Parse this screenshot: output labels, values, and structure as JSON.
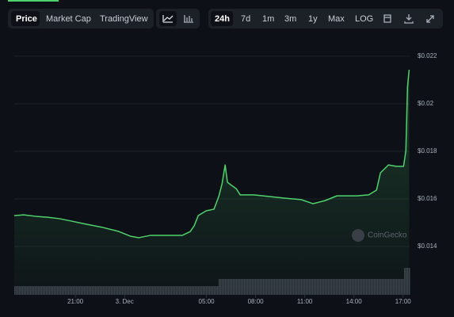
{
  "toolbar": {
    "tabs": [
      "Price",
      "Market Cap",
      "TradingView"
    ],
    "ranges": [
      "24h",
      "7d",
      "1m",
      "3m",
      "1y",
      "Max",
      "LOG"
    ]
  },
  "chart_data": {
    "type": "line",
    "watermark": "CoinGecko",
    "color": "#4fd26b",
    "grid": true,
    "x": [
      17.27,
      17.85,
      18.58,
      19.3,
      20.03,
      20.75,
      21.72,
      22.69,
      23.66,
      24.38,
      24.87,
      25.59,
      26.56,
      27.53,
      28.01,
      28.25,
      28.5,
      28.98,
      29.46,
      29.75,
      29.95,
      30.14,
      30.28,
      30.53,
      30.82,
      31.06,
      31.88,
      32.85,
      33.82,
      34.78,
      35.51,
      36.24,
      36.96,
      38.17,
      38.9,
      39.38,
      39.62,
      40.11,
      40.59,
      41.03,
      41.17,
      41.27,
      41.37
    ],
    "values": [
      0.0153,
      0.01533,
      0.01527,
      0.01523,
      0.01517,
      0.01507,
      0.01493,
      0.0148,
      0.01463,
      0.01443,
      0.01437,
      0.01447,
      0.01447,
      0.01447,
      0.01463,
      0.01487,
      0.0153,
      0.0155,
      0.01557,
      0.0161,
      0.01663,
      0.01743,
      0.0167,
      0.01657,
      0.01643,
      0.01617,
      0.01617,
      0.0161,
      0.01603,
      0.01597,
      0.0158,
      0.01593,
      0.01613,
      0.01613,
      0.01617,
      0.01637,
      0.0171,
      0.01743,
      0.01737,
      0.01737,
      0.01803,
      0.0207,
      0.02143
    ],
    "xlim": [
      17.27,
      41.4
    ],
    "xticks": [
      {
        "value": 21,
        "label": "21:00"
      },
      {
        "value": 24,
        "label": "3. Dec"
      },
      {
        "value": 29,
        "label": "05:00"
      },
      {
        "value": 32,
        "label": "08:00"
      },
      {
        "value": 35,
        "label": "11:00"
      },
      {
        "value": 38,
        "label": "14:00"
      },
      {
        "value": 41,
        "label": "17:00"
      }
    ],
    "ylim": [
      0.01197,
      0.02253
    ],
    "yticks": [
      {
        "value": 0.014,
        "label": "$0.014"
      },
      {
        "value": 0.016,
        "label": "$0.016"
      },
      {
        "value": 0.018,
        "label": "$0.018"
      },
      {
        "value": 0.02,
        "label": "$0.02"
      },
      {
        "value": 0.022,
        "label": "$0.022"
      }
    ]
  }
}
